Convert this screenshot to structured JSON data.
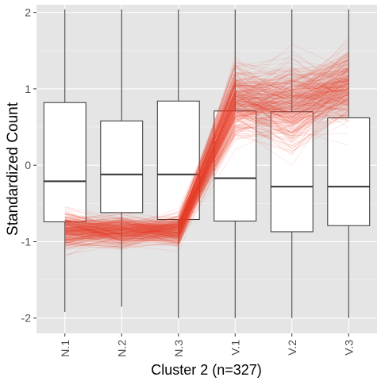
{
  "chart_data": {
    "type": "box_with_parallel_lines",
    "xlabel": "Cluster 2 (n=327)",
    "ylabel": "Standardized Count",
    "categories": [
      "N.1",
      "N.2",
      "N.3",
      "V.1",
      "V.2",
      "V.3"
    ],
    "ylim": [
      -2.2,
      2.1
    ],
    "yticks": [
      -2,
      -1,
      0,
      1,
      2
    ],
    "ytick_labels": [
      "-2",
      "-1",
      "0",
      "1",
      "2"
    ],
    "grid": true,
    "panel_background": "#e5e5e5",
    "line_color": "#e8412a",
    "line_count": 327,
    "boxes": [
      {
        "category": "N.1",
        "whisker_low": -1.92,
        "q1": -0.74,
        "median": -0.21,
        "q3": 0.82,
        "whisker_high": 2.04
      },
      {
        "category": "N.2",
        "whisker_low": -1.85,
        "q1": -0.62,
        "median": -0.12,
        "q3": 0.58,
        "whisker_high": 2.04
      },
      {
        "category": "N.3",
        "whisker_low": -2.0,
        "q1": -0.71,
        "median": -0.12,
        "q3": 0.84,
        "whisker_high": 2.04
      },
      {
        "category": "V.1",
        "whisker_low": -2.0,
        "q1": -0.73,
        "median": -0.17,
        "q3": 0.71,
        "whisker_high": 2.04
      },
      {
        "category": "V.2",
        "whisker_low": -2.0,
        "q1": -0.87,
        "median": -0.28,
        "q3": 0.7,
        "whisker_high": 2.04
      },
      {
        "category": "V.3",
        "whisker_low": -2.0,
        "q1": -0.79,
        "median": -0.28,
        "q3": 0.62,
        "whisker_high": 2.04
      }
    ],
    "cluster_profile_mean": [
      -0.85,
      -0.87,
      -0.85,
      0.85,
      0.8,
      1.05
    ],
    "cluster_profile_spread": [
      0.12,
      0.1,
      0.1,
      0.22,
      0.28,
      0.25
    ]
  }
}
